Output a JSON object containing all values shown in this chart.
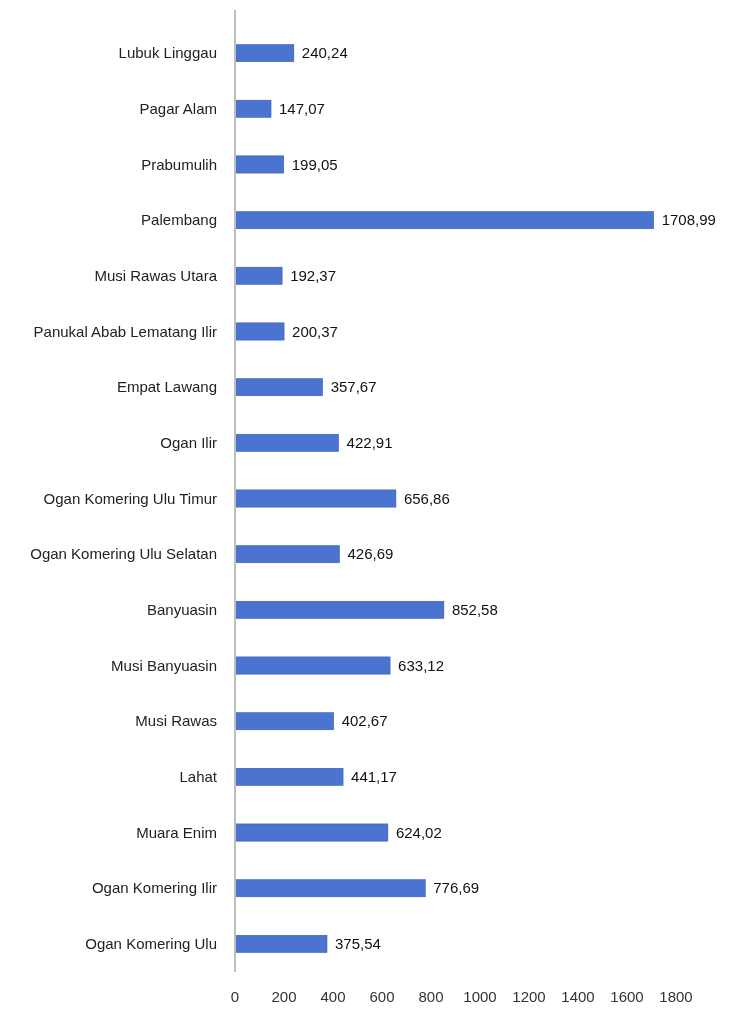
{
  "chart_data": {
    "type": "bar",
    "orientation": "horizontal",
    "categories": [
      "Lubuk Linggau",
      "Pagar Alam",
      "Prabumulih",
      "Palembang",
      "Musi Rawas Utara",
      "Panukal Abab Lematang Ilir",
      "Empat Lawang",
      "Ogan Ilir",
      "Ogan Komering Ulu Timur",
      "Ogan Komering Ulu Selatan",
      "Banyuasin",
      "Musi Banyuasin",
      "Musi Rawas",
      "Lahat",
      "Muara Enim",
      "Ogan Komering Ilir",
      "Ogan Komering Ulu"
    ],
    "values": [
      240.24,
      147.07,
      199.05,
      1708.99,
      192.37,
      200.37,
      357.67,
      422.91,
      656.86,
      426.69,
      852.58,
      633.12,
      402.67,
      441.17,
      624.02,
      776.69,
      375.54
    ],
    "value_labels": [
      "240,24",
      "147,07",
      "199,05",
      "1708,99",
      "192,37",
      "200,37",
      "357,67",
      "422,91",
      "656,86",
      "426,69",
      "852,58",
      "633,12",
      "402,67",
      "441,17",
      "624,02",
      "776,69",
      "375,54"
    ],
    "color": "#4a74d0",
    "xlim": [
      0,
      1800
    ],
    "xticks": [
      0,
      200,
      400,
      600,
      800,
      1000,
      1200,
      1400,
      1600,
      1800
    ],
    "grid": false
  }
}
